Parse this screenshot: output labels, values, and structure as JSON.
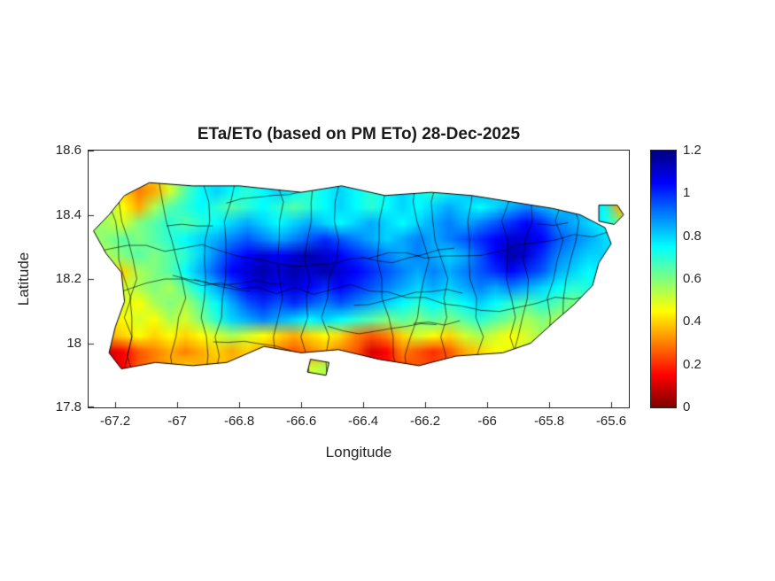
{
  "figure": {
    "title": "ETa/ETo (based on PM ETo) 28-Dec-2025",
    "xlabel": "Longitude",
    "ylabel": "Latitude"
  },
  "chart_data": {
    "type": "heatmap",
    "title": "ETa/ETo (based on PM ETo) 28-Dec-2025",
    "xlabel": "Longitude",
    "ylabel": "Latitude",
    "region": "Puerto Rico with municipal boundary outlines",
    "xlim": [
      -67.286,
      -65.543
    ],
    "ylim": [
      17.8,
      18.6
    ],
    "xticks": [
      -67.2,
      -67.0,
      -66.8,
      -66.6,
      -66.4,
      -66.2,
      -66.0,
      -65.8,
      -65.6
    ],
    "xtick_labels": [
      "-67.2",
      "-67",
      "-66.8",
      "-66.6",
      "-66.4",
      "-66.2",
      "-66",
      "-65.8",
      "-65.6"
    ],
    "yticks": [
      17.8,
      18.0,
      18.2,
      18.4,
      18.6
    ],
    "ytick_labels": [
      "17.8",
      "18",
      "18.2",
      "18.4",
      "18.6"
    ],
    "grid_on": false,
    "legend": "colorbar right",
    "colorbar": {
      "min": 0,
      "max": 1.2,
      "ticks": [
        0,
        0.2,
        0.4,
        0.6,
        0.8,
        1,
        1.2
      ],
      "tick_labels": [
        "0",
        "0.2",
        "0.4",
        "0.6",
        "0.8",
        "1",
        "1.2"
      ],
      "colormap": "jet reversed (0 = dark red, 1.2 = dark blue)",
      "low_color": "#7f0000",
      "high_color": "#00007f"
    },
    "grid": {
      "lon_start": -67.3,
      "lon_step": 0.05,
      "lat_start": 18.55,
      "lat_step": -0.05,
      "values": [
        [
          null,
          null,
          null,
          null,
          null,
          null,
          null,
          null,
          null,
          null,
          null,
          null,
          null,
          null,
          null,
          null,
          null,
          null,
          null,
          null,
          null,
          null,
          null,
          null,
          null,
          null,
          null,
          null,
          null,
          null,
          null,
          null,
          null,
          null,
          null,
          null
        ],
        [
          null,
          null,
          0.4,
          0.3,
          0.35,
          0.5,
          0.65,
          0.75,
          0.8,
          0.75,
          0.7,
          0.75,
          0.8,
          0.75,
          0.7,
          0.75,
          0.8,
          0.75,
          0.7,
          0.75,
          0.8,
          0.75,
          0.7,
          0.75,
          0.8,
          0.85,
          0.8,
          0.75,
          0.7,
          0.75,
          0.8,
          0.85,
          null,
          null,
          null,
          null
        ],
        [
          null,
          0.55,
          0.45,
          0.35,
          0.55,
          0.65,
          0.7,
          0.75,
          0.7,
          0.65,
          0.7,
          0.75,
          0.7,
          0.65,
          0.7,
          0.75,
          0.8,
          0.75,
          0.7,
          0.75,
          0.8,
          0.75,
          0.8,
          0.85,
          0.8,
          0.75,
          0.8,
          0.85,
          0.9,
          0.85,
          0.8,
          0.85,
          0.8,
          0.75,
          0.35,
          null
        ],
        [
          0.6,
          0.55,
          0.5,
          0.6,
          0.65,
          0.7,
          0.65,
          0.7,
          0.75,
          0.8,
          0.85,
          0.8,
          0.75,
          0.8,
          0.85,
          0.8,
          0.75,
          0.8,
          0.85,
          0.8,
          0.75,
          0.8,
          0.85,
          0.9,
          0.85,
          0.9,
          0.95,
          1.0,
          1.05,
          1.0,
          0.9,
          0.85,
          0.8,
          0.75,
          null,
          null
        ],
        [
          0.55,
          0.6,
          0.65,
          0.6,
          0.65,
          0.7,
          0.75,
          0.8,
          0.85,
          0.9,
          0.95,
          0.9,
          0.85,
          0.9,
          0.95,
          1.0,
          0.95,
          0.9,
          0.85,
          0.8,
          0.85,
          0.9,
          0.85,
          0.9,
          0.95,
          1.0,
          1.05,
          1.1,
          1.1,
          1.05,
          0.95,
          0.9,
          0.85,
          null,
          null,
          null
        ],
        [
          0.5,
          0.55,
          0.6,
          0.65,
          0.6,
          0.65,
          0.7,
          0.8,
          0.9,
          1.0,
          1.05,
          1.1,
          1.05,
          1.1,
          1.15,
          1.1,
          1.05,
          1.0,
          0.95,
          0.9,
          0.85,
          0.9,
          0.85,
          0.8,
          0.85,
          0.95,
          1.05,
          1.15,
          1.1,
          1.0,
          0.9,
          0.85,
          0.8,
          null,
          null,
          null
        ],
        [
          0.45,
          0.5,
          0.4,
          0.55,
          0.6,
          0.65,
          0.75,
          0.85,
          0.95,
          1.05,
          1.1,
          1.15,
          1.1,
          1.15,
          1.1,
          1.15,
          1.1,
          1.05,
          1.0,
          0.95,
          0.9,
          0.85,
          0.9,
          0.85,
          0.9,
          0.95,
          1.0,
          1.05,
          1.0,
          0.95,
          0.85,
          0.8,
          0.75,
          null,
          null,
          null
        ],
        [
          0.4,
          0.45,
          0.5,
          0.55,
          0.6,
          0.55,
          0.65,
          0.75,
          0.85,
          0.95,
          1.05,
          1.1,
          1.05,
          1.1,
          1.05,
          1.0,
          1.05,
          1.0,
          0.95,
          0.9,
          0.85,
          0.8,
          0.85,
          0.8,
          0.85,
          0.9,
          0.85,
          0.9,
          0.85,
          0.8,
          0.75,
          0.7,
          null,
          null,
          null,
          null
        ],
        [
          null,
          0.45,
          0.5,
          0.45,
          0.55,
          0.6,
          0.55,
          0.65,
          0.75,
          0.85,
          0.95,
          1.0,
          0.95,
          1.0,
          0.95,
          0.9,
          0.95,
          0.9,
          0.85,
          0.8,
          0.75,
          0.7,
          0.75,
          0.7,
          0.75,
          0.8,
          0.75,
          0.7,
          0.65,
          0.7,
          0.65,
          0.6,
          null,
          null,
          null,
          null
        ],
        [
          null,
          0.4,
          0.45,
          0.5,
          0.45,
          0.55,
          0.5,
          0.6,
          0.7,
          0.8,
          0.85,
          0.9,
          0.85,
          0.8,
          0.75,
          0.8,
          0.75,
          0.7,
          0.65,
          0.6,
          0.65,
          0.6,
          0.65,
          0.6,
          0.65,
          0.7,
          0.65,
          0.6,
          0.55,
          0.6,
          0.55,
          null,
          null,
          null,
          null,
          null
        ],
        [
          null,
          0.35,
          0.4,
          0.45,
          0.4,
          0.45,
          0.4,
          0.45,
          0.5,
          0.55,
          0.5,
          0.45,
          0.4,
          0.35,
          0.4,
          0.45,
          0.4,
          0.3,
          0.25,
          0.3,
          0.4,
          0.5,
          0.45,
          0.4,
          0.5,
          0.55,
          0.5,
          0.45,
          0.5,
          0.55,
          null,
          null,
          null,
          null,
          null,
          null
        ],
        [
          null,
          0.1,
          0.15,
          0.25,
          0.3,
          0.35,
          0.3,
          0.35,
          0.4,
          0.35,
          0.4,
          0.35,
          0.3,
          0.25,
          0.3,
          0.35,
          0.3,
          0.25,
          0.1,
          0.15,
          0.3,
          0.25,
          0.2,
          0.25,
          0.35,
          0.4,
          0.45,
          null,
          null,
          null,
          null,
          null,
          null,
          null,
          null,
          null
        ],
        [
          null,
          0.05,
          0.15,
          0.25,
          0.3,
          0.35,
          0.4,
          null,
          null,
          null,
          null,
          null,
          null,
          null,
          0.5,
          0.55,
          null,
          null,
          null,
          null,
          null,
          null,
          null,
          null,
          null,
          null,
          null,
          null,
          null,
          null,
          null,
          null,
          null,
          null,
          null,
          null
        ],
        [
          null,
          null,
          null,
          null,
          null,
          null,
          null,
          null,
          null,
          null,
          null,
          null,
          null,
          null,
          null,
          null,
          null,
          null,
          null,
          null,
          null,
          null,
          null,
          null,
          null,
          null,
          null,
          null,
          null,
          null,
          null,
          null,
          null,
          null,
          null,
          null
        ]
      ]
    },
    "coastline": [
      [
        [
          -67.17,
          18.46
        ],
        [
          -67.09,
          18.5
        ],
        [
          -66.95,
          18.49
        ],
        [
          -66.8,
          18.49
        ],
        [
          -66.6,
          18.47
        ],
        [
          -66.47,
          18.49
        ],
        [
          -66.33,
          18.46
        ],
        [
          -66.18,
          18.47
        ],
        [
          -66.05,
          18.46
        ],
        [
          -65.92,
          18.44
        ],
        [
          -65.79,
          18.42
        ],
        [
          -65.7,
          18.4
        ],
        [
          -65.62,
          18.36
        ],
        [
          -65.6,
          18.31
        ],
        [
          -65.64,
          18.25
        ],
        [
          -65.66,
          18.18
        ],
        [
          -65.72,
          18.12
        ],
        [
          -65.78,
          18.07
        ],
        [
          -65.86,
          18.0
        ],
        [
          -65.95,
          17.97
        ],
        [
          -66.1,
          17.96
        ],
        [
          -66.22,
          17.93
        ],
        [
          -66.35,
          17.95
        ],
        [
          -66.48,
          17.98
        ],
        [
          -66.6,
          17.97
        ],
        [
          -66.72,
          17.99
        ],
        [
          -66.84,
          17.94
        ],
        [
          -66.95,
          17.93
        ],
        [
          -67.07,
          17.94
        ],
        [
          -67.18,
          17.92
        ],
        [
          -67.22,
          17.97
        ],
        [
          -67.2,
          18.05
        ],
        [
          -67.17,
          18.13
        ],
        [
          -67.18,
          18.22
        ],
        [
          -67.23,
          18.28
        ],
        [
          -67.27,
          18.35
        ],
        [
          -67.22,
          18.4
        ]
      ],
      [
        [
          -65.64,
          18.43
        ],
        [
          -65.58,
          18.43
        ],
        [
          -65.56,
          18.4
        ],
        [
          -65.59,
          18.37
        ],
        [
          -65.64,
          18.38
        ]
      ],
      [
        [
          -66.57,
          17.95
        ],
        [
          -66.51,
          17.94
        ],
        [
          -66.52,
          17.9
        ],
        [
          -66.58,
          17.91
        ]
      ]
    ]
  }
}
